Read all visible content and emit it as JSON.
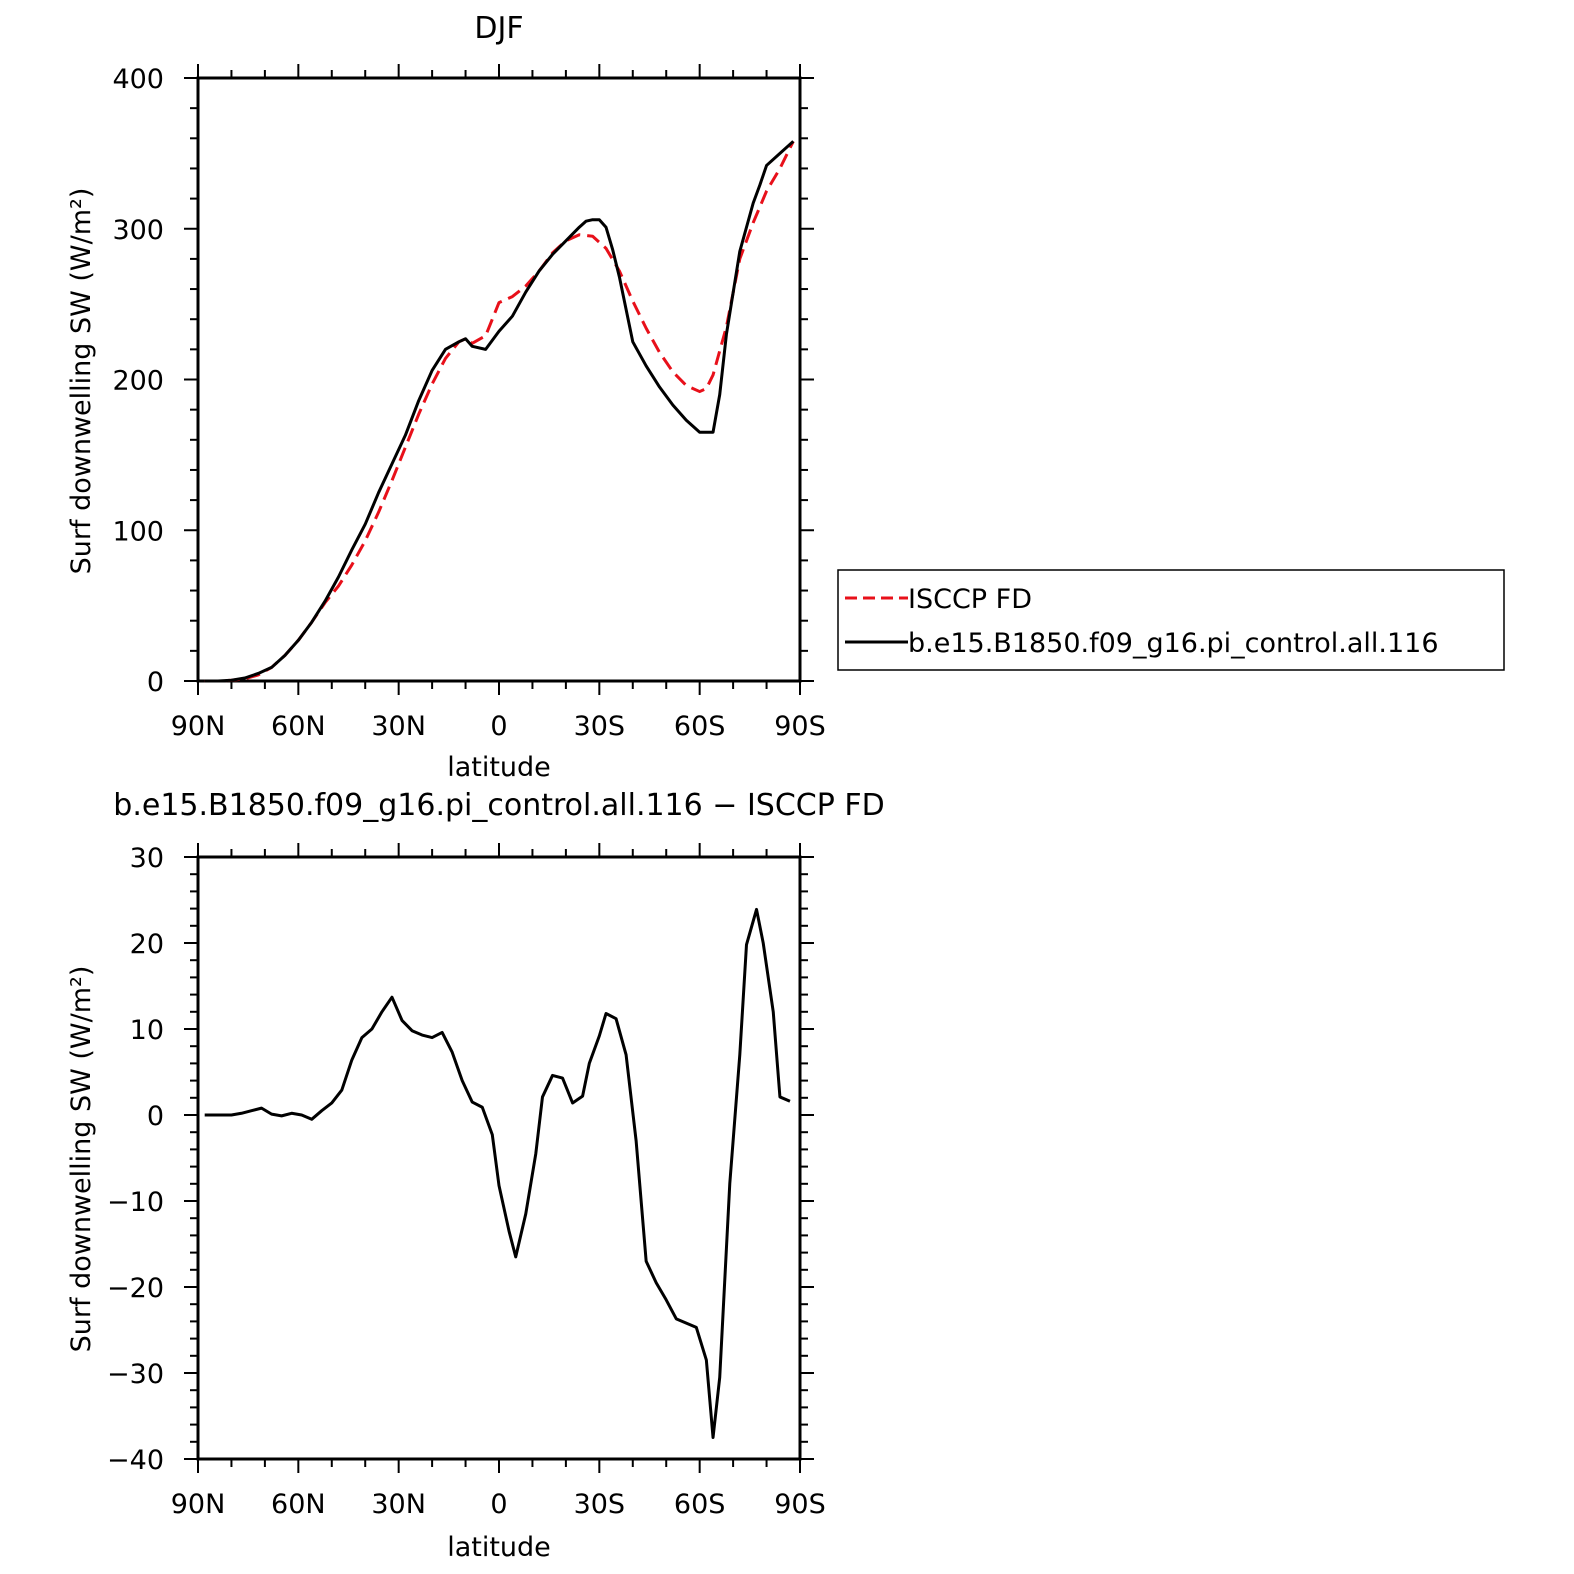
{
  "chart_data": [
    {
      "type": "line",
      "title": "DJF",
      "xlabel": "latitude",
      "ylabel": "Surf downwelling SW (W/m²)",
      "xlim": [
        -90,
        90
      ],
      "ylim": [
        0,
        400
      ],
      "x_ticks": [
        -90,
        -60,
        -30,
        0,
        30,
        60,
        90
      ],
      "x_tick_labels": [
        "90N",
        "60N",
        "30N",
        "0",
        "30S",
        "60S",
        "90S"
      ],
      "y_ticks": [
        0,
        100,
        200,
        300,
        400
      ],
      "y_tick_labels": [
        "0",
        "100",
        "200",
        "300",
        "400"
      ],
      "legend": {
        "position": "right",
        "entries": [
          "ISCCP FD",
          "b.e15.B1850.f09_g16.pi_control.all.116"
        ]
      },
      "series": [
        {
          "name": "ISCCP FD",
          "color": "#e8101a",
          "dash": "dashed",
          "x": [
            -88,
            -84,
            -80,
            -76,
            -72,
            -68,
            -64,
            -60,
            -56,
            -52,
            -48,
            -44,
            -40,
            -36,
            -32,
            -28,
            -24,
            -20,
            -16,
            -12,
            -10,
            -8,
            -4,
            -2,
            0,
            4,
            8,
            12,
            16,
            20,
            24,
            28,
            32,
            36,
            40,
            44,
            48,
            52,
            56,
            60,
            62,
            64,
            68,
            72,
            76,
            80,
            84,
            88
          ],
          "values": [
            0,
            0,
            0.5,
            1.5,
            4,
            9,
            17,
            27,
            39,
            52,
            63,
            77,
            93,
            112,
            133,
            155,
            177,
            197,
            214,
            225,
            227,
            224,
            229,
            240,
            251,
            255,
            262,
            272,
            284,
            292,
            296,
            295,
            287,
            272,
            252,
            234,
            218,
            205,
            196,
            192,
            194,
            203,
            235,
            280,
            304,
            325,
            340,
            358
          ]
        },
        {
          "name": "b.e15.B1850.f09_g16.pi_control.all.116",
          "color": "#000000",
          "dash": "solid",
          "x": [
            -88,
            -84,
            -80,
            -76,
            -72,
            -68,
            -64,
            -60,
            -56,
            -52,
            -48,
            -44,
            -40,
            -36,
            -32,
            -28,
            -24,
            -20,
            -16,
            -12,
            -10,
            -8,
            -4,
            0,
            4,
            8,
            12,
            16,
            20,
            24,
            26,
            28,
            30,
            32,
            34,
            36,
            40,
            44,
            48,
            52,
            56,
            60,
            62,
            64,
            66,
            68,
            72,
            76,
            78,
            80,
            84,
            88
          ],
          "values": [
            0,
            0,
            0.5,
            2,
            5,
            9,
            17,
            27,
            39,
            53,
            69,
            87,
            104,
            125,
            144,
            163,
            186,
            206,
            220,
            225,
            227,
            222,
            220,
            232,
            242,
            258,
            272,
            283,
            292,
            301,
            305,
            306,
            306,
            301,
            286,
            268,
            225,
            209,
            195,
            183,
            173,
            165,
            165,
            165,
            190,
            230,
            285,
            317,
            329,
            342,
            350,
            358
          ]
        }
      ]
    },
    {
      "type": "line",
      "title": "b.e15.B1850.f09_g16.pi_control.all.116 − ISCCP FD",
      "xlabel": "latitude",
      "ylabel": "Surf downwelling SW (W/m²)",
      "xlim": [
        -90,
        90
      ],
      "ylim": [
        -40,
        30
      ],
      "x_ticks": [
        -90,
        -60,
        -30,
        0,
        30,
        60,
        90
      ],
      "x_tick_labels": [
        "90N",
        "60N",
        "30N",
        "0",
        "30S",
        "60S",
        "90S"
      ],
      "y_ticks": [
        -40,
        -30,
        -20,
        -10,
        0,
        10,
        20,
        30
      ],
      "y_tick_labels": [
        "−40",
        "−30",
        "−20",
        "−10",
        "0",
        "10",
        "20",
        "30"
      ],
      "series": [
        {
          "color": "#000000",
          "dash": "solid",
          "x": [
            -88,
            -85,
            -80,
            -77,
            -74,
            -71,
            -68,
            -65,
            -62,
            -59,
            -56,
            -53,
            -50,
            -47,
            -44,
            -41,
            -38,
            -35,
            -32,
            -29,
            -26,
            -23,
            -20,
            -17,
            -14,
            -11,
            -8,
            -5,
            -2,
            0,
            3,
            5,
            8,
            11,
            13,
            16,
            19,
            22,
            25,
            27,
            30,
            32,
            35,
            38,
            41,
            44,
            47,
            50,
            53,
            56,
            59,
            62,
            64,
            66,
            69,
            72,
            74,
            77,
            79,
            82,
            84,
            87
          ],
          "values": [
            0,
            0,
            0,
            0.2,
            0.5,
            0.8,
            0.1,
            -0.1,
            0.2,
            0,
            -0.5,
            0.5,
            1.4,
            2.9,
            6.4,
            9,
            10,
            12,
            13.7,
            11,
            9.8,
            9.3,
            9,
            9.6,
            7.3,
            4,
            1.5,
            0.9,
            -2.3,
            -8.2,
            -13.5,
            -16.5,
            -11.5,
            -4.5,
            2.1,
            4.6,
            4.3,
            1.4,
            2.2,
            6,
            9.2,
            11.8,
            11.2,
            7,
            -3,
            -17,
            -19.5,
            -21.5,
            -23.7,
            -24.2,
            -24.7,
            -28.5,
            -37.5,
            -30.5,
            -8,
            7,
            19.8,
            23.9,
            20,
            12,
            2.1,
            1.6
          ]
        }
      ]
    }
  ]
}
